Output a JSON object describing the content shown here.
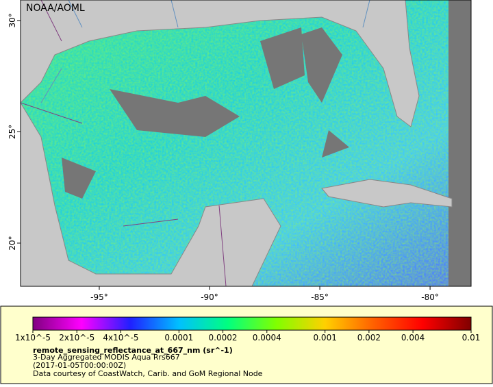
{
  "map": {
    "title": "NOAA/AOML",
    "lon_range": [
      -98.57,
      -78.14
    ],
    "lat_range": [
      18.06,
      30.92
    ],
    "lon_ticks": [
      {
        "value": -95,
        "label": "-95°"
      },
      {
        "value": -90,
        "label": "-90°"
      },
      {
        "value": -85,
        "label": "-85°"
      },
      {
        "value": -80,
        "label": "-80°"
      }
    ],
    "lat_ticks": [
      {
        "value": 30,
        "label": "30°"
      },
      {
        "value": 25,
        "label": "25°"
      },
      {
        "value": 20,
        "label": "20°"
      }
    ]
  },
  "colorbar": {
    "log_scale": true,
    "range": [
      1e-05,
      0.01
    ],
    "colors": [
      "#800080",
      "#ff00ff",
      "#2020ff",
      "#00c0ff",
      "#00ff80",
      "#80ff00",
      "#ffd000",
      "#ff6000",
      "#ff0000",
      "#800000"
    ],
    "ticks": [
      {
        "value": 1e-05,
        "label": "1x10^-5"
      },
      {
        "value": 2e-05,
        "label": "2x10^-5"
      },
      {
        "value": 4e-05,
        "label": "4x10^-5"
      },
      0.0001,
      0.0002,
      0.0004,
      0.001,
      0.002,
      0.004,
      0.01
    ]
  },
  "caption": {
    "variable": "remote_sensing_reflectance_at_667_nm (sr^-1)",
    "lines": [
      "3-Day Aggregated MODIS Aqua Rrs667",
      "(2017-01-05T00:00:00Z)",
      "Data courtesy of CoastWatch, Carib. and GoM Regional Node"
    ]
  }
}
